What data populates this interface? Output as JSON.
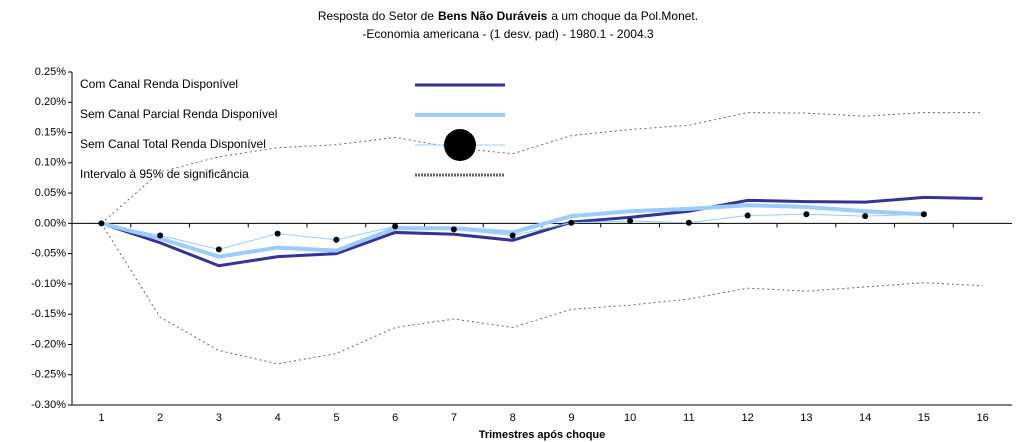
{
  "chart_data": {
    "type": "line",
    "title": [
      "Resposta do Setor de",
      "Bens Não Duráveis",
      "a um choque da Pol.Monet."
    ],
    "subtitle": "-Economia americana - (1 desv. pad) - 1980.1 - 2004.3",
    "x_label": "Trimestres após choque",
    "categories": [
      "1",
      "2",
      "3",
      "4",
      "5",
      "6",
      "7",
      "8",
      "9",
      "10",
      "11",
      "12",
      "13",
      "14",
      "15",
      "16"
    ],
    "ylim": [
      -0.3,
      0.25
    ],
    "yticks": [
      {
        "value": 0.25,
        "label": "0.25%"
      },
      {
        "value": 0.2,
        "label": "0.20%"
      },
      {
        "value": 0.15,
        "label": "0.15%"
      },
      {
        "value": 0.1,
        "label": "0.10%"
      },
      {
        "value": 0.05,
        "label": "0.05%"
      },
      {
        "value": 0,
        "label": "0.00%"
      },
      {
        "value": -0.05,
        "label": "-0.05%"
      },
      {
        "value": -0.1,
        "label": "-0.10%"
      },
      {
        "value": -0.15,
        "label": "-0.15%"
      },
      {
        "value": -0.2,
        "label": "-0.20%"
      },
      {
        "value": -0.25,
        "label": "-0.25%"
      },
      {
        "value": -0.3,
        "label": "-0.30%"
      }
    ],
    "series": [
      {
        "name": "Com Canal Renda Disponível",
        "color": "#333399",
        "width": 3,
        "values": [
          0,
          -0.032,
          -0.07,
          -0.055,
          -0.05,
          -0.015,
          -0.018,
          -0.028,
          0.002,
          0.01,
          0.02,
          0.038,
          0.036,
          0.035,
          0.043,
          0.041
        ]
      },
      {
        "name": "Sem Canal Parcial Renda Disponível",
        "color": "#99ccff",
        "width": 4,
        "values": [
          0,
          -0.025,
          -0.055,
          -0.04,
          -0.045,
          -0.008,
          -0.008,
          -0.015,
          0.012,
          0.02,
          0.024,
          0.03,
          0.027,
          0.02,
          0.015,
          null
        ]
      },
      {
        "name": "Sem Canal Total Renda Disponível",
        "color": "#99ccff",
        "width": 1,
        "marker_color": "#000000",
        "values": [
          0,
          -0.02,
          -0.043,
          -0.017,
          -0.027,
          -0.005,
          -0.01,
          -0.02,
          0.001,
          0.004,
          0.001,
          0.013,
          0.015,
          0.012,
          0.015,
          null
        ]
      }
    ],
    "band": {
      "name": "Intervalo à 95% de significância",
      "color": "#666666",
      "upper": [
        0,
        0.085,
        0.11,
        0.125,
        0.13,
        0.142,
        0.125,
        0.115,
        0.145,
        0.155,
        0.162,
        0.183,
        0.182,
        0.177,
        0.183,
        0.183
      ],
      "lower": [
        0,
        -0.155,
        -0.21,
        -0.232,
        -0.215,
        -0.172,
        -0.158,
        -0.172,
        -0.142,
        -0.135,
        -0.125,
        -0.107,
        -0.112,
        -0.105,
        -0.098,
        -0.103
      ]
    }
  }
}
